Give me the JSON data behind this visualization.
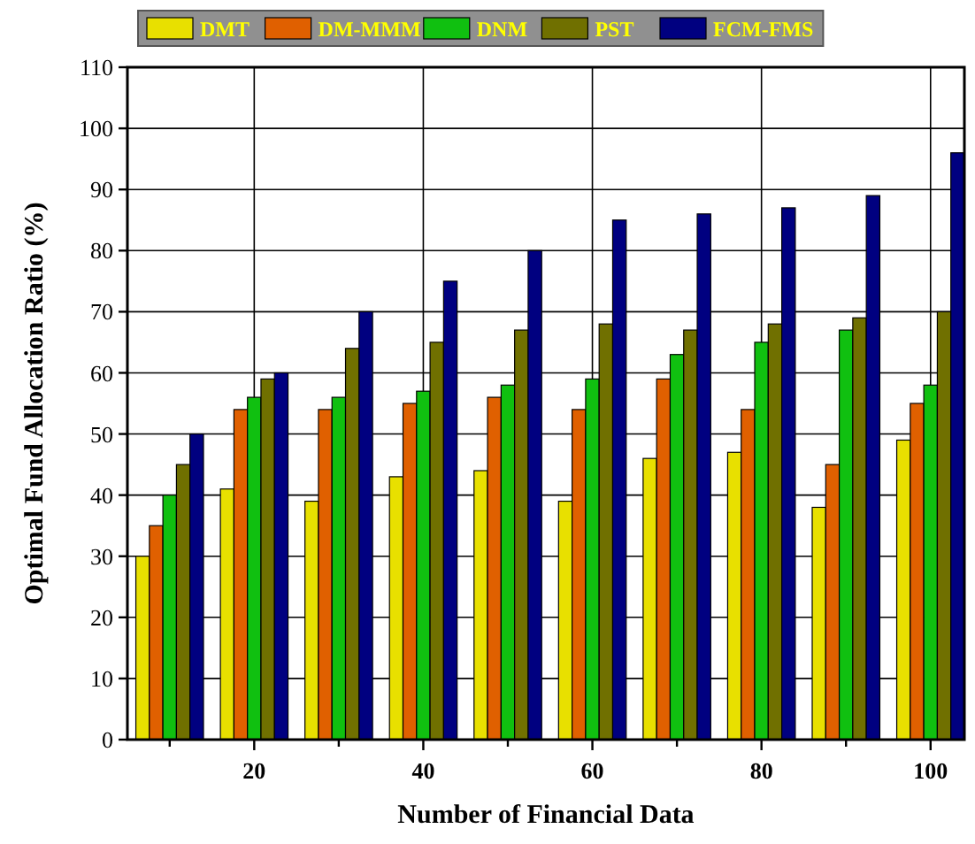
{
  "chart_data": {
    "type": "bar",
    "xlabel": "Number of Financial Data",
    "ylabel": "Optimal Fund Allocation Ratio (%)",
    "x": [
      10,
      20,
      30,
      40,
      50,
      60,
      70,
      80,
      90,
      100
    ],
    "series": [
      {
        "name": "DMT",
        "color": "#e8e000",
        "values": [
          30,
          41,
          39,
          43,
          44,
          39,
          46,
          47,
          38,
          49
        ]
      },
      {
        "name": "DM-MMM",
        "color": "#e06000",
        "values": [
          35,
          54,
          54,
          55,
          56,
          54,
          59,
          54,
          45,
          55
        ]
      },
      {
        "name": "DNM",
        "color": "#10c010",
        "values": [
          40,
          56,
          56,
          57,
          58,
          59,
          63,
          65,
          67,
          58
        ]
      },
      {
        "name": "PST",
        "color": "#707000",
        "values": [
          45,
          59,
          64,
          65,
          67,
          68,
          67,
          68,
          69,
          70
        ]
      },
      {
        "name": "FCM-FMS",
        "color": "#000080",
        "values": [
          50,
          60,
          70,
          75,
          80,
          85,
          86,
          87,
          89,
          96
        ]
      }
    ],
    "xlim": [
      5,
      104
    ],
    "xticks": [
      {
        "value": 10,
        "label": null
      },
      20,
      {
        "value": 30,
        "label": null
      },
      40,
      {
        "value": 50,
        "label": null
      },
      60,
      {
        "value": 70,
        "label": null
      },
      80,
      {
        "value": 90,
        "label": null
      },
      100
    ],
    "ylim": [
      0,
      110
    ],
    "yticks": [
      0,
      10,
      20,
      30,
      40,
      50,
      60,
      70,
      80,
      90,
      100,
      110
    ],
    "grid": true,
    "legend": "top"
  }
}
